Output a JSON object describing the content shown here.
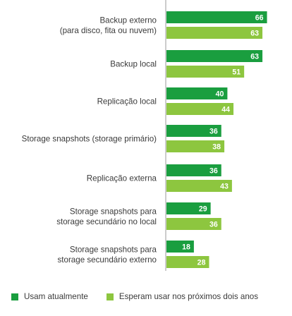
{
  "chart_data": {
    "type": "bar",
    "orientation": "horizontal",
    "categories": [
      [
        "Backup externo",
        "(para disco, fita ou nuvem)"
      ],
      [
        "Backup local"
      ],
      [
        "Replicação local"
      ],
      [
        "Storage snapshots (storage primário)"
      ],
      [
        "Replicação externa"
      ],
      [
        "Storage snapshots para",
        "storage secundário no local"
      ],
      [
        "Storage snapshots para",
        "storage secundário externo"
      ]
    ],
    "series": [
      {
        "name": "Usam atualmente",
        "color": "#1a9e3f",
        "values": [
          66,
          63,
          40,
          36,
          36,
          29,
          18
        ]
      },
      {
        "name": "Esperam usar nos próximos dois anos",
        "color": "#8dc63f",
        "values": [
          63,
          51,
          44,
          38,
          43,
          36,
          28
        ]
      }
    ],
    "grid": false,
    "legend_position": "bottom"
  },
  "legend": {
    "items": [
      {
        "label": "Usam atualmente",
        "color": "#1a9e3f"
      },
      {
        "label": "Esperam usar nos próximos dois anos",
        "color": "#8dc63f"
      }
    ]
  }
}
